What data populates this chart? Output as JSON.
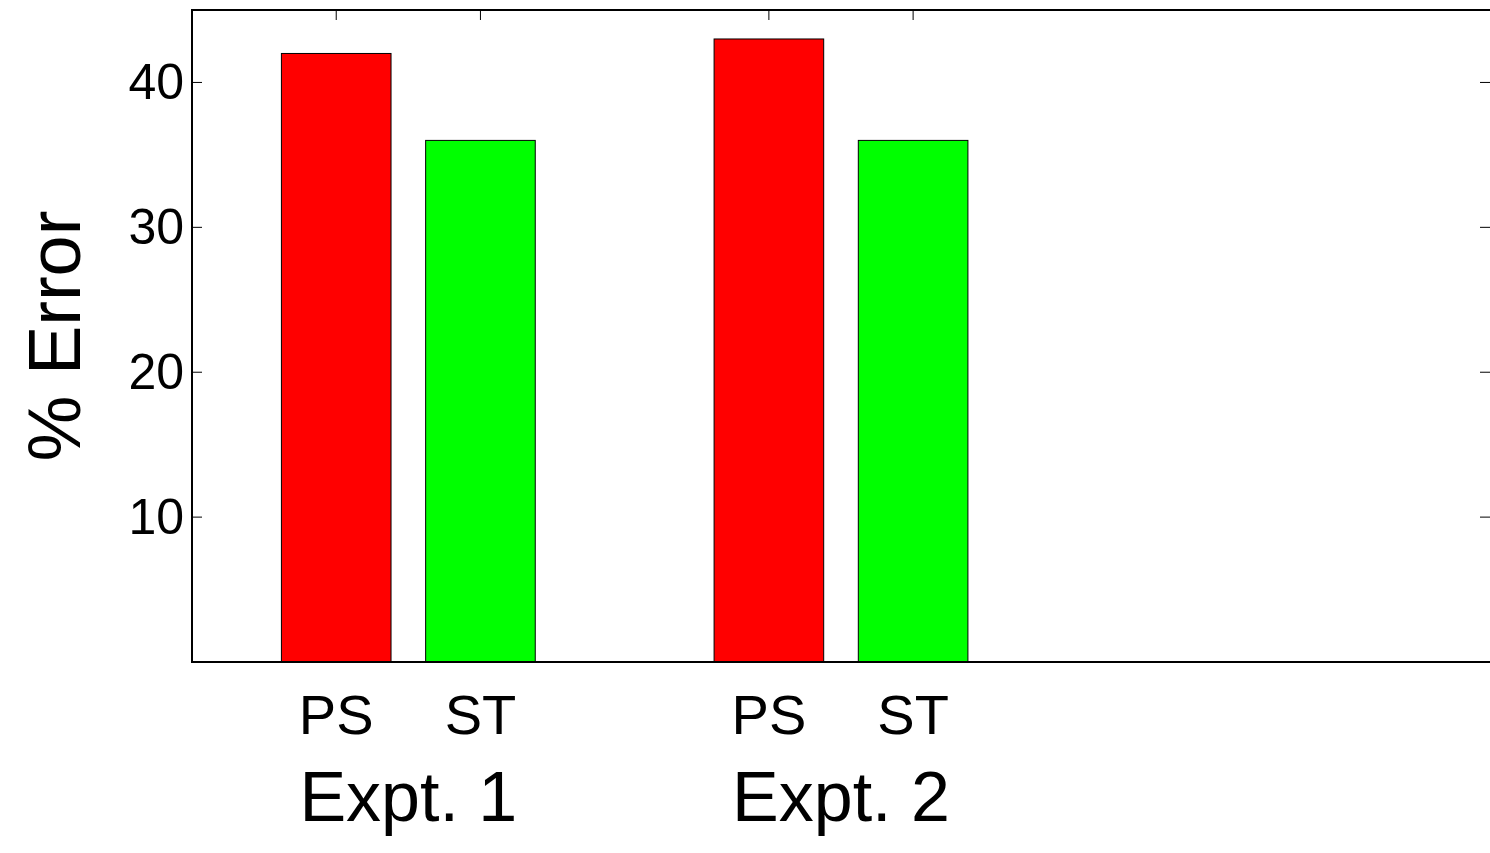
{
  "chart_data": {
    "type": "bar",
    "ylabel": "% Error",
    "categories": [
      "PS",
      "ST",
      null,
      "PS",
      "ST",
      null,
      null,
      null
    ],
    "values": [
      42,
      36,
      null,
      43,
      36,
      null,
      null,
      null
    ],
    "colors": [
      "#ff0000",
      "#00ff00",
      null,
      "#ff0000",
      "#00ff00",
      null,
      null,
      null
    ],
    "ylim": [
      0,
      45
    ],
    "yticks": [
      10,
      20,
      30,
      40
    ],
    "grid": false,
    "annotations": [
      "Expt. 1",
      "Expt. 2"
    ]
  }
}
